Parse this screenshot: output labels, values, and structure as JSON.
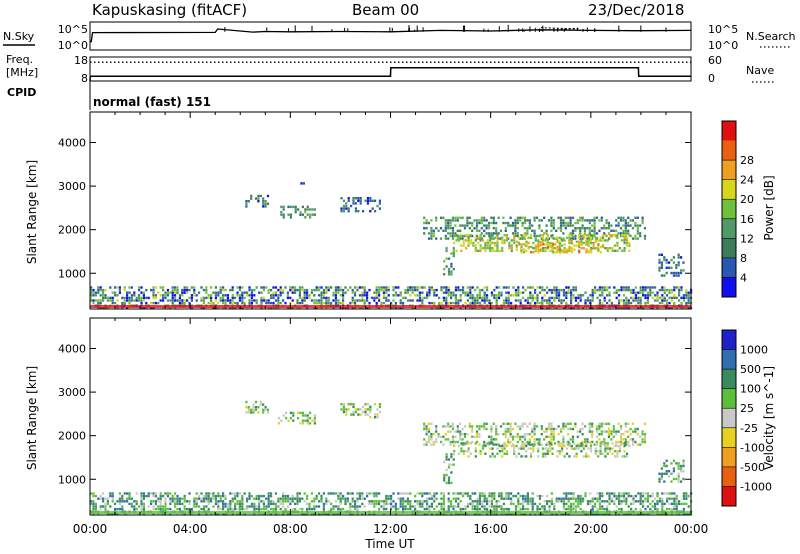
{
  "header": {
    "station": "Kapuskasing (fitACF)",
    "beam": "Beam 00",
    "date": "23/Dec/2018"
  },
  "noise_panel": {
    "left_label": "N.Sky",
    "right_label": "N.Search",
    "left_ticks": [
      "10^5",
      "10^0"
    ],
    "right_ticks": [
      "10^5",
      "10^0"
    ]
  },
  "freq_panel": {
    "left_label_line1": "Freq.",
    "left_label_line2": "[MHz]",
    "right_label": "Nave",
    "left_ticks": [
      "18",
      "8"
    ],
    "right_ticks": [
      "60",
      "0"
    ],
    "freq_ylim": [
      8,
      18
    ],
    "nave_ylim": [
      0,
      60
    ]
  },
  "cpid": {
    "label": "CPID",
    "value": "normal (fast) 151"
  },
  "time_axis": {
    "label": "Time UT",
    "ticks": [
      "00:00",
      "04:00",
      "08:00",
      "12:00",
      "16:00",
      "20:00",
      "00:00"
    ]
  },
  "colors": {
    "power": [
      "#1010ee",
      "#2a58b0",
      "#3d7d5e",
      "#4f9a68",
      "#6fc03a",
      "#d6d61a",
      "#f0a020",
      "#e86010",
      "#e01010"
    ],
    "velocity": [
      "#2020c8",
      "#306eb0",
      "#3a8a60",
      "#5cbf3c",
      "#c8c8c8",
      "#e8d020",
      "#f0a020",
      "#e86010",
      "#e01010"
    ]
  },
  "chart_data": [
    {
      "type": "line",
      "name": "noise",
      "xlim": [
        0,
        24
      ],
      "series": [
        {
          "name": "N.Sky",
          "values_note_free": true,
          "x": [
            0,
            0.05,
            0.1,
            5,
            5.1,
            6.5,
            7,
            8,
            10,
            12,
            14,
            16,
            18,
            20,
            22,
            24
          ],
          "y": [
            0.3,
            0.3,
            0.62,
            0.63,
            0.75,
            0.64,
            0.66,
            0.65,
            0.66,
            0.65,
            0.7,
            0.68,
            0.72,
            0.7,
            0.69,
            0.7
          ]
        }
      ]
    },
    {
      "type": "line",
      "name": "frequency-nave",
      "xlim": [
        0,
        24
      ],
      "series": [
        {
          "name": "Freq.",
          "x": [
            0,
            0.01,
            12,
            12.01,
            21.9,
            21.91,
            24
          ],
          "y": [
            8,
            10,
            10,
            13.5,
            13.5,
            10,
            10
          ]
        },
        {
          "name": "Nave",
          "x": [
            0,
            24
          ],
          "y": [
            47,
            47
          ]
        }
      ]
    },
    {
      "type": "heatmap",
      "name": "power",
      "title": "",
      "xlabel": "",
      "ylabel": "Slant Range [km]",
      "colorbar_label": "Power [dB]",
      "colorbar_ticks": [
        "4",
        "8",
        "12",
        "16",
        "20",
        "24",
        "28"
      ],
      "xlim": [
        0,
        24
      ],
      "ylim": [
        180,
        4700
      ],
      "yticks": [
        1000,
        2000,
        3000,
        4000
      ],
      "regions": [
        {
          "t0": 0,
          "t1": 24,
          "r0": 180,
          "r1": 700,
          "level": 3
        },
        {
          "t0": 6.2,
          "t1": 7.1,
          "r0": 2550,
          "r1": 2800,
          "level": 2
        },
        {
          "t0": 7.5,
          "t1": 9.0,
          "r0": 2300,
          "r1": 2550,
          "level": 3
        },
        {
          "t0": 8.4,
          "t1": 8.5,
          "r0": 3050,
          "r1": 3150,
          "level": 2
        },
        {
          "t0": 10.0,
          "t1": 11.6,
          "r0": 2400,
          "r1": 2750,
          "level": 2
        },
        {
          "t0": 13.3,
          "t1": 22.2,
          "r0": 1800,
          "r1": 2300,
          "level": 3
        },
        {
          "t0": 14.5,
          "t1": 21.5,
          "r0": 1500,
          "r1": 1900,
          "level": 5
        },
        {
          "t0": 17.0,
          "t1": 20.5,
          "r0": 1500,
          "r1": 1750,
          "level": 6
        },
        {
          "t0": 14.1,
          "t1": 14.5,
          "r0": 900,
          "r1": 1600,
          "level": 3
        },
        {
          "t0": 22.7,
          "t1": 23.7,
          "r0": 950,
          "r1": 1450,
          "level": 2
        }
      ]
    },
    {
      "type": "heatmap",
      "name": "velocity",
      "title": "",
      "xlabel": "Time UT",
      "ylabel": "Slant Range [km]",
      "colorbar_label": "Velocity [m s^-1]",
      "colorbar_ticks": [
        "1000",
        "500",
        "100",
        "25",
        "-25",
        "-100",
        "-500",
        "-1000"
      ],
      "xlim": [
        0,
        24
      ],
      "ylim": [
        180,
        4700
      ],
      "yticks": [
        1000,
        2000,
        3000,
        4000
      ],
      "regions": [
        {
          "t0": 0,
          "t1": 24,
          "r0": 180,
          "r1": 700,
          "level": 3
        },
        {
          "t0": 6.2,
          "t1": 7.1,
          "r0": 2550,
          "r1": 2800,
          "level": 4
        },
        {
          "t0": 7.5,
          "t1": 9.0,
          "r0": 2300,
          "r1": 2550,
          "level": 4
        },
        {
          "t0": 10.0,
          "t1": 11.6,
          "r0": 2400,
          "r1": 2750,
          "level": 4
        },
        {
          "t0": 13.3,
          "t1": 22.2,
          "r0": 1800,
          "r1": 2300,
          "level": 4
        },
        {
          "t0": 14.5,
          "t1": 21.5,
          "r0": 1550,
          "r1": 1850,
          "level": 4
        },
        {
          "t0": 14.1,
          "t1": 14.5,
          "r0": 900,
          "r1": 1600,
          "level": 3
        },
        {
          "t0": 22.7,
          "t1": 23.7,
          "r0": 950,
          "r1": 1450,
          "level": 3
        }
      ]
    }
  ]
}
